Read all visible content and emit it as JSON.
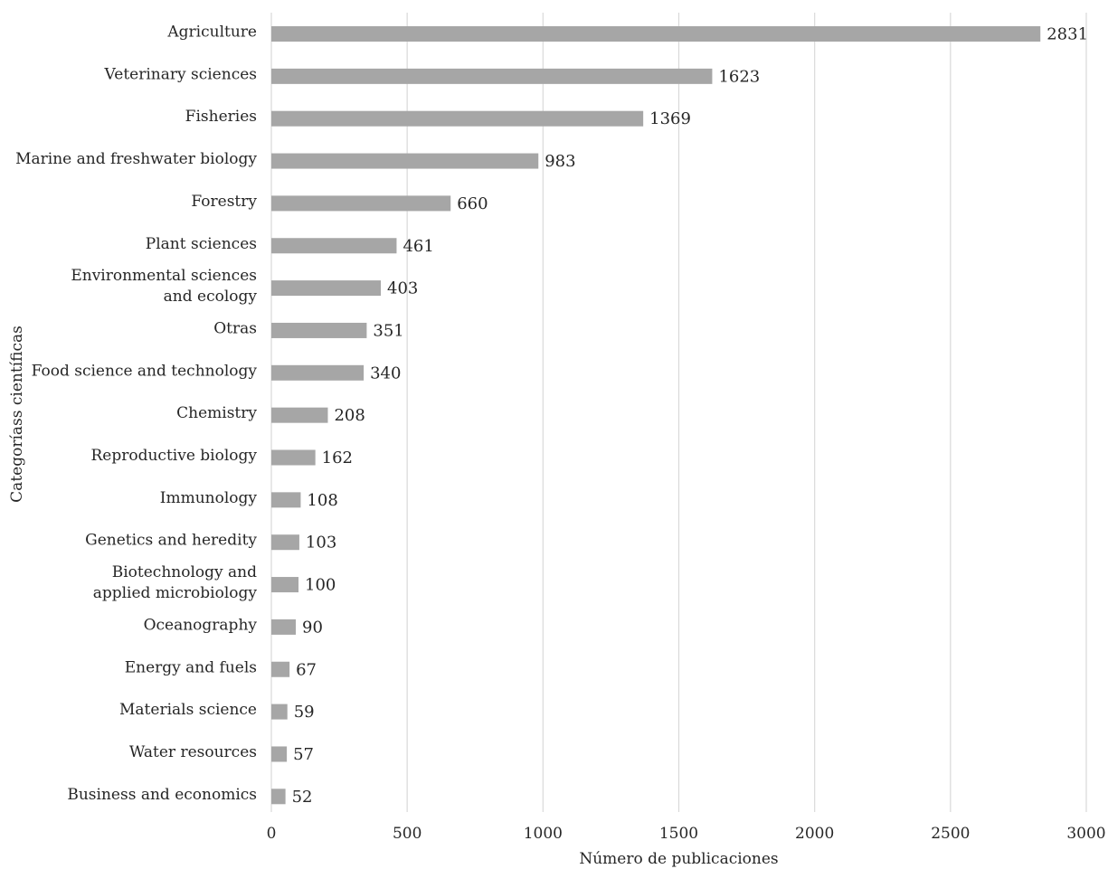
{
  "chart_data": {
    "type": "bar",
    "orientation": "horizontal",
    "categories": [
      [
        "Agriculture"
      ],
      [
        "Veterinary sciences"
      ],
      [
        "Fisheries"
      ],
      [
        "Marine and freshwater biology"
      ],
      [
        "Forestry"
      ],
      [
        "Plant sciences"
      ],
      [
        "Environmental sciences",
        "and ecology"
      ],
      [
        "Otras"
      ],
      [
        "Food science and technology"
      ],
      [
        "Chemistry"
      ],
      [
        "Reproductive biology"
      ],
      [
        "Immunology"
      ],
      [
        "Genetics and heredity"
      ],
      [
        "Biotechnology and",
        "applied microbiology"
      ],
      [
        "Oceanography"
      ],
      [
        "Energy and fuels"
      ],
      [
        "Materials science"
      ],
      [
        "Water resources"
      ],
      [
        "Business and economics"
      ]
    ],
    "values": [
      2831,
      1623,
      1369,
      983,
      660,
      461,
      403,
      351,
      340,
      208,
      162,
      108,
      103,
      100,
      90,
      67,
      59,
      57,
      52
    ],
    "value_labels": [
      "2831",
      "1623",
      "1369",
      "983",
      "660",
      "461",
      "403",
      "351",
      "340",
      "208",
      "162",
      "108",
      "103",
      "100",
      "90",
      "67",
      "59",
      "57",
      "52"
    ],
    "xlabel": "Número de publicaciones",
    "ylabel": "Categoríass científicas",
    "xlim": [
      0,
      3000
    ],
    "xticks": [
      0,
      500,
      1000,
      1500,
      2000,
      2500,
      3000
    ],
    "xtick_labels": [
      "0",
      "500",
      "1000",
      "1500",
      "2000",
      "2500",
      "3000"
    ],
    "grid": "vertical",
    "legend": "none",
    "colors": {
      "bar": "#a6a6a6",
      "grid": "#d9d9d9",
      "text": "#262626"
    }
  }
}
